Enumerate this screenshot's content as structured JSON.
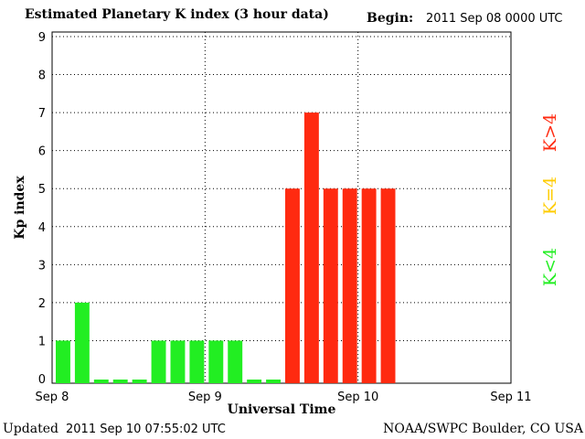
{
  "header": {
    "title": "Estimated Planetary K index (3 hour data)",
    "begin_label": "Begin:",
    "begin_value": "2011 Sep 08 0000 UTC"
  },
  "footer": {
    "updated_label": "Updated",
    "updated_value": "2011 Sep 10 07:55:02 UTC",
    "credit": "NOAA/SWPC Boulder, CO USA"
  },
  "legend": {
    "high": "K>4",
    "mid": "K=4",
    "low": "K<4"
  },
  "colors": {
    "low": "#22ee22",
    "mid": "#ffcc00",
    "high": "#ff2a10"
  },
  "chart_data": {
    "type": "bar",
    "title": "Estimated Planetary K index (3 hour data)",
    "xlabel": "Universal Time",
    "ylabel": "Kp index",
    "ylim": [
      0,
      9
    ],
    "yticks": [
      0,
      1,
      2,
      3,
      4,
      5,
      6,
      7,
      8,
      9
    ],
    "xlim_days": [
      0,
      3
    ],
    "xticks": [
      {
        "day": 0,
        "label": "Sep 8"
      },
      {
        "day": 1,
        "label": "Sep 9"
      },
      {
        "day": 2,
        "label": "Sep 10"
      },
      {
        "day": 3,
        "label": "Sep 11"
      }
    ],
    "grid": true,
    "bar_interval_hours": 3,
    "values": [
      1,
      2,
      0,
      0,
      0,
      1,
      1,
      1,
      1,
      1,
      0,
      0,
      5,
      7,
      5,
      5,
      5,
      5
    ]
  }
}
